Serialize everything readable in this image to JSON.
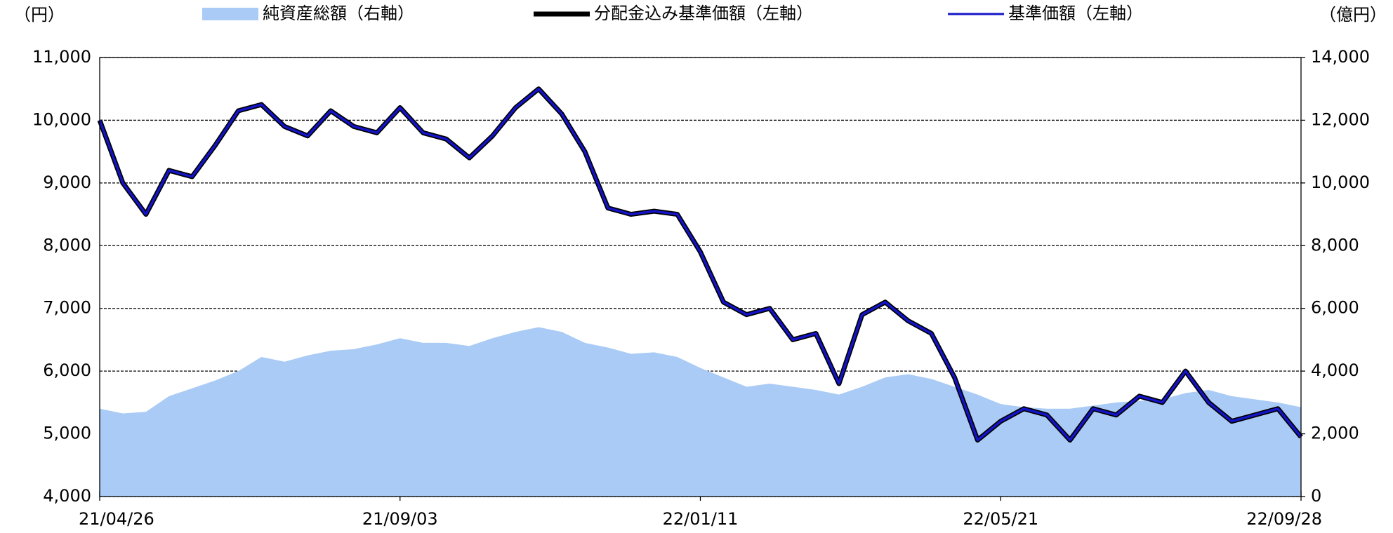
{
  "chart_data": {
    "type": "line",
    "y_label": "（円）",
    "y2_label": "（億円）",
    "legend": "top",
    "grid": true,
    "x": [
      "21/04/26",
      "21/05/06",
      "21/05/16",
      "21/05/26",
      "21/06/05",
      "21/06/15",
      "21/06/25",
      "21/07/05",
      "21/07/15",
      "21/07/25",
      "21/08/04",
      "21/08/14",
      "21/08/24",
      "21/09/03",
      "21/09/13",
      "21/09/23",
      "21/10/03",
      "21/10/13",
      "21/10/23",
      "21/11/02",
      "21/11/12",
      "21/11/22",
      "21/12/02",
      "21/12/12",
      "21/12/22",
      "22/01/01",
      "22/01/11",
      "22/01/21",
      "22/01/31",
      "22/02/10",
      "22/02/20",
      "22/03/02",
      "22/03/12",
      "22/03/22",
      "22/04/01",
      "22/04/11",
      "22/04/21",
      "22/05/01",
      "22/05/11",
      "22/05/21",
      "22/05/31",
      "22/06/10",
      "22/06/20",
      "22/06/30",
      "22/07/10",
      "22/07/20",
      "22/07/30",
      "22/08/09",
      "22/08/19",
      "22/08/29",
      "22/09/08",
      "22/09/18",
      "22/09/28"
    ],
    "xticks": [
      "21/04/26",
      "21/09/03",
      "22/01/11",
      "22/05/21",
      "22/09/28"
    ],
    "ylim": [
      4000,
      11000
    ],
    "yticks": [
      {
        "value": 4000,
        "label": "4,000"
      },
      {
        "value": 5000,
        "label": "5,000"
      },
      {
        "value": 6000,
        "label": "6,000"
      },
      {
        "value": 7000,
        "label": "7,000"
      },
      {
        "value": 8000,
        "label": "8,000"
      },
      {
        "value": 9000,
        "label": "9,000"
      },
      {
        "value": 10000,
        "label": "10,000"
      },
      {
        "value": 11000,
        "label": "11,000"
      }
    ],
    "y2lim": [
      0,
      14000
    ],
    "y2ticks": [
      0,
      {
        "value": 2000,
        "label": "2,000"
      },
      {
        "value": 4000,
        "label": "4,000"
      },
      {
        "value": 6000,
        "label": "6,000"
      },
      {
        "value": 8000,
        "label": "8,000"
      },
      {
        "value": 10000,
        "label": "10,000"
      },
      {
        "value": 12000,
        "label": "12,000"
      },
      {
        "value": 14000,
        "label": "14,000"
      }
    ],
    "series": [
      {
        "name": "純資産総額（右軸）",
        "type": "area",
        "axis": "y2",
        "color": "#a9cbf5",
        "values": [
          2800,
          2650,
          2700,
          3200,
          3450,
          3700,
          4000,
          4450,
          4300,
          4500,
          4650,
          4700,
          4850,
          5050,
          4900,
          4900,
          4800,
          5050,
          5250,
          5400,
          5250,
          4900,
          4750,
          4550,
          4600,
          4450,
          4100,
          3800,
          3500,
          3600,
          3500,
          3400,
          3250,
          3500,
          3800,
          3900,
          3750,
          3500,
          3250,
          2950,
          2850,
          2800,
          2800,
          2900,
          3000,
          3050,
          3100,
          3300,
          3400,
          3200,
          3100,
          3000,
          2850
        ]
      },
      {
        "name": "分配金込み基準価額（左軸）",
        "type": "line",
        "color": "#000000",
        "values": [
          10000,
          9000,
          8500,
          9200,
          9100,
          9600,
          10150,
          10250,
          9900,
          9750,
          10150,
          9900,
          9800,
          10200,
          9800,
          9700,
          9400,
          9750,
          10200,
          10500,
          10100,
          9500,
          8600,
          8500,
          8550,
          8500,
          7900,
          7100,
          6900,
          7000,
          6500,
          6600,
          5800,
          6900,
          7100,
          6800,
          6600,
          5900,
          4900,
          5200,
          5400,
          5300,
          4900,
          5400,
          5300,
          5600,
          5500,
          6000,
          5500,
          5200,
          5300,
          5400,
          4950
        ]
      },
      {
        "name": "基準価額（左軸）",
        "type": "line",
        "color": "#1414c8",
        "values": [
          10000,
          9000,
          8500,
          9200,
          9100,
          9600,
          10150,
          10250,
          9900,
          9750,
          10150,
          9900,
          9800,
          10200,
          9800,
          9700,
          9400,
          9750,
          10200,
          10500,
          10100,
          9500,
          8600,
          8500,
          8550,
          8500,
          7900,
          7100,
          6900,
          7000,
          6500,
          6600,
          5800,
          6900,
          7100,
          6800,
          6600,
          5900,
          4900,
          5200,
          5400,
          5300,
          4900,
          5400,
          5300,
          5600,
          5500,
          6000,
          5500,
          5200,
          5300,
          5400,
          4950
        ]
      }
    ]
  }
}
